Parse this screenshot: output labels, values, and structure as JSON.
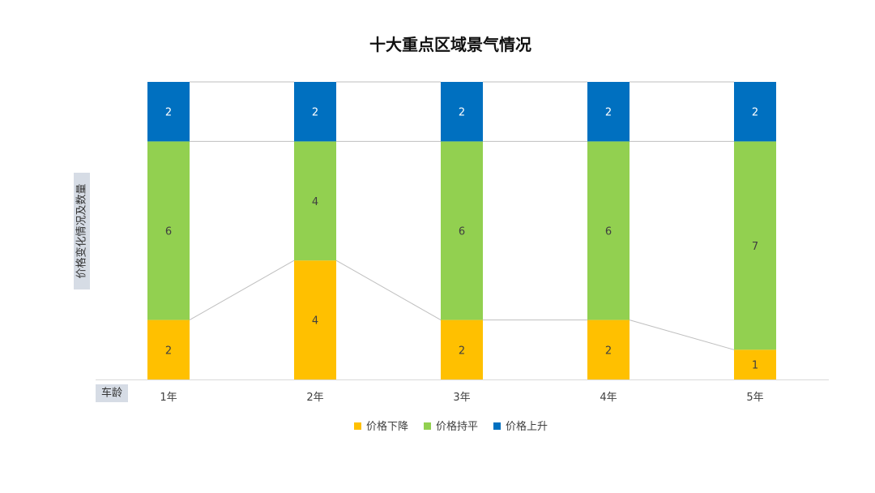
{
  "chart_data": {
    "type": "bar",
    "stacked": true,
    "title": "十大重点区域景气情况",
    "xlabel": "车龄",
    "ylabel": "价格变化情况及数量",
    "categories": [
      "1年",
      "2年",
      "3年",
      "4年",
      "5年"
    ],
    "series": [
      {
        "name": "价格下降",
        "values": [
          2,
          4,
          2,
          2,
          1
        ],
        "color": "#FFC000",
        "label_color": "#404040"
      },
      {
        "name": "价格持平",
        "values": [
          6,
          4,
          6,
          6,
          7
        ],
        "color": "#92D050",
        "label_color": "#404040"
      },
      {
        "name": "价格上升",
        "values": [
          2,
          2,
          2,
          2,
          2
        ],
        "color": "#0070C0",
        "label_color": "#FFFFFF"
      }
    ],
    "ylim": [
      0,
      10
    ],
    "series_lines": true,
    "grid": false,
    "legend_position": "bottom",
    "axis_title_background": "#D6DCE5"
  }
}
